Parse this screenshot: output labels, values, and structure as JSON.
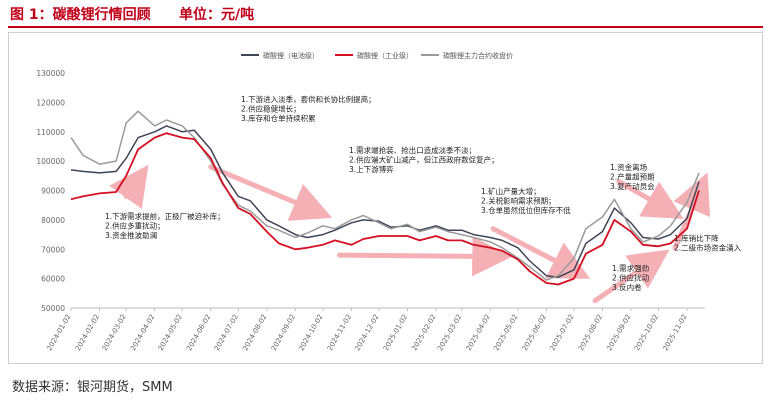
{
  "page": {
    "title": "图 1：碳酸锂行情回顾",
    "unit": "单位：元/吨",
    "source": "数据来源：银河期货，SMM"
  },
  "chart_data": {
    "type": "line",
    "title": "",
    "xlabel": "",
    "ylabel": "",
    "ylim": [
      50000,
      130000
    ],
    "yticks": [
      50000,
      60000,
      70000,
      80000,
      90000,
      100000,
      110000,
      120000,
      130000
    ],
    "x_tick_labels": [
      "2024-01-02",
      "2024-02-02",
      "2024-03-02",
      "2024-04-02",
      "2024-05-02",
      "2024-06-02",
      "2024-07-02",
      "2024-08-02",
      "2024-09-02",
      "2024-10-02",
      "2024-11-02",
      "2024-12-02",
      "2025-01-02",
      "2025-02-02",
      "2025-03-02",
      "2025-04-02",
      "2025-05-02",
      "2025-06-02",
      "2025-07-02",
      "2025-08-02",
      "2025-09-02",
      "2025-10-02",
      "2025-11-02"
    ],
    "grid": false,
    "legend_position": "top-center",
    "x_dates": [
      "2024-01-02",
      "2024-01-15",
      "2024-02-02",
      "2024-02-20",
      "2024-03-02",
      "2024-03-15",
      "2024-04-02",
      "2024-04-15",
      "2024-05-02",
      "2024-05-15",
      "2024-06-02",
      "2024-06-15",
      "2024-07-02",
      "2024-07-15",
      "2024-08-02",
      "2024-08-15",
      "2024-09-02",
      "2024-09-15",
      "2024-10-02",
      "2024-10-15",
      "2024-11-02",
      "2024-11-15",
      "2024-12-02",
      "2024-12-15",
      "2025-01-02",
      "2025-01-15",
      "2025-02-02",
      "2025-02-15",
      "2025-03-02",
      "2025-03-15",
      "2025-04-02",
      "2025-04-15",
      "2025-05-02",
      "2025-05-15",
      "2025-06-02",
      "2025-06-15",
      "2025-07-02",
      "2025-07-15",
      "2025-08-02",
      "2025-08-15",
      "2025-09-02",
      "2025-09-15",
      "2025-10-02",
      "2025-10-15",
      "2025-11-02",
      "2025-11-15"
    ],
    "series": [
      {
        "name": "碳酸锂（电池级）",
        "color": "#3f4656",
        "values": [
          97000,
          96500,
          96000,
          96500,
          101000,
          108000,
          110000,
          112000,
          110000,
          110500,
          104000,
          96000,
          88000,
          86500,
          80000,
          78000,
          75000,
          74000,
          75000,
          76500,
          79000,
          80000,
          79500,
          77500,
          78000,
          76500,
          78000,
          76500,
          76500,
          75000,
          74000,
          73000,
          70500,
          66000,
          61000,
          60500,
          63000,
          72000,
          76000,
          84000,
          79000,
          74000,
          73500,
          75000,
          80500,
          93000
        ]
      },
      {
        "name": "碳酸锂（工业级）",
        "color": "#d40f22",
        "values": [
          87000,
          88000,
          89000,
          89500,
          95000,
          104000,
          108000,
          109500,
          108000,
          107500,
          101000,
          92500,
          84000,
          82000,
          76000,
          72000,
          70000,
          70500,
          71500,
          73000,
          71500,
          73500,
          74500,
          74500,
          74500,
          73000,
          74500,
          73000,
          73000,
          71500,
          70500,
          69500,
          66500,
          62500,
          58500,
          58000,
          60000,
          68500,
          71500,
          80000,
          76000,
          71500,
          71000,
          72000,
          77000,
          90000
        ]
      },
      {
        "name": "碳酸锂主力合约收盘价",
        "color": "#9a9a9a",
        "values": [
          108000,
          102000,
          99000,
          100000,
          113000,
          117000,
          112000,
          114000,
          112000,
          108000,
          100000,
          92000,
          85000,
          83000,
          78000,
          76500,
          74000,
          75500,
          78000,
          77000,
          80000,
          81500,
          79000,
          77000,
          78500,
          76000,
          77500,
          76000,
          75000,
          74000,
          72500,
          70500,
          67000,
          64000,
          59500,
          61000,
          67000,
          77000,
          81000,
          87000,
          77000,
          72500,
          74500,
          78000,
          86000,
          96000
        ]
      }
    ],
    "annotations": [
      "1.下游进入淡季，套供和长协比例提高；\n2.供应稳健增长；\n3.库存和仓单持续积累",
      "1.需求端抢装、抢出口造成淡季不淡；\n2.供应端大矿山减产，但江西政府数促复产；\n3.上下游博弈",
      "1.下游需求提前，正极厂被迫补库；\n2.供应多重扰动；\n3.资金推波助澜",
      "1.矿山产量大增；\n2.关税影响需求预期；\n3.仓单虽然低位但库存不低",
      "1.资金离场\n2.产量超预期\n3.复产动员会",
      "1.需求强劲\n2.供应扰动\n3.反内卷",
      "1.库销比下降\n2.二级市场资金涌入"
    ]
  }
}
